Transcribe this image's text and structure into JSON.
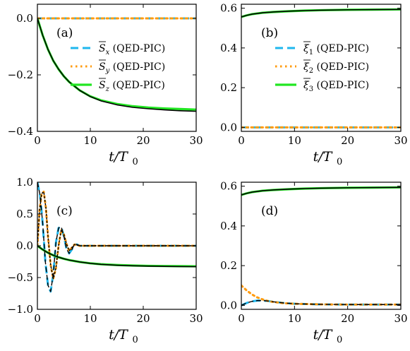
{
  "colors": {
    "x": "#1fb7ee",
    "y": "#ff9b0f",
    "z": "#22e622",
    "theory": "#000000"
  },
  "chart_data": [
    {
      "panel": "(a)",
      "type": "line",
      "xlabel": "t/T",
      "xlabel_sub": "0",
      "xlim": [
        0,
        30
      ],
      "ylim": [
        -0.4,
        0.05
      ],
      "xticks": [
        0,
        10,
        20,
        30
      ],
      "xtick_labels": [
        "0",
        "10",
        "20",
        "30"
      ],
      "yticks": [
        0,
        -0.2,
        -0.4
      ],
      "ytick_labels": [
        "0.0",
        "−0.2",
        "−0.4"
      ],
      "legend": [
        {
          "sym": "S",
          "sub": "x",
          "suffix": "(QED-PIC)",
          "style": "dashed",
          "color_key": "x"
        },
        {
          "sym": "S",
          "sub": "y",
          "suffix": "(QED-PIC)",
          "style": "dotted",
          "color_key": "y"
        },
        {
          "sym": "S",
          "sub": "z",
          "suffix": "(QED-PIC)",
          "style": "solid",
          "color_key": "z"
        }
      ],
      "series": [
        {
          "key": "x",
          "x": [
            0,
            5,
            10,
            15,
            20,
            25,
            30
          ],
          "y": [
            0,
            0,
            0,
            0,
            0,
            0,
            0
          ]
        },
        {
          "key": "y",
          "x": [
            0,
            5,
            10,
            15,
            20,
            25,
            30
          ],
          "y": [
            0,
            0,
            0,
            0,
            0,
            0,
            0
          ]
        },
        {
          "key": "z",
          "x": [
            0,
            1,
            2,
            3,
            4,
            5,
            6,
            8,
            10,
            12,
            15,
            18,
            21,
            24,
            27,
            30
          ],
          "y": [
            0,
            -0.06,
            -0.11,
            -0.15,
            -0.18,
            -0.205,
            -0.225,
            -0.255,
            -0.276,
            -0.29,
            -0.303,
            -0.311,
            -0.316,
            -0.319,
            -0.321,
            -0.323
          ]
        },
        {
          "key": "theory",
          "x": [
            0,
            1,
            2,
            3,
            4,
            5,
            6,
            8,
            10,
            12,
            15,
            18,
            21,
            24,
            27,
            30
          ],
          "y": [
            0,
            -0.06,
            -0.11,
            -0.15,
            -0.18,
            -0.205,
            -0.225,
            -0.255,
            -0.277,
            -0.292,
            -0.306,
            -0.315,
            -0.32,
            -0.324,
            -0.327,
            -0.329
          ]
        }
      ]
    },
    {
      "panel": "(b)",
      "type": "line",
      "xlabel": "t/T",
      "xlabel_sub": "0",
      "xlim": [
        0,
        30
      ],
      "ylim": [
        -0.02,
        0.62
      ],
      "xticks": [
        0,
        10,
        20,
        30
      ],
      "xtick_labels": [
        "0",
        "10",
        "20",
        "30"
      ],
      "yticks": [
        0.0,
        0.2,
        0.4,
        0.6
      ],
      "ytick_labels": [
        "0.0",
        "0.2",
        "0.4",
        "0.6"
      ],
      "legend": [
        {
          "sym": "ξ",
          "sub": "1",
          "suffix": "(QED-PIC)",
          "style": "dashed",
          "color_key": "x"
        },
        {
          "sym": "ξ",
          "sub": "2",
          "suffix": "(QED-PIC)",
          "style": "dotted",
          "color_key": "y"
        },
        {
          "sym": "ξ",
          "sub": "3",
          "suffix": "(QED-PIC)",
          "style": "solid",
          "color_key": "z"
        }
      ],
      "series": [
        {
          "key": "x",
          "x": [
            0,
            10,
            20,
            30
          ],
          "y": [
            0,
            0,
            0,
            0
          ]
        },
        {
          "key": "y",
          "x": [
            0,
            10,
            20,
            30
          ],
          "y": [
            0,
            0,
            0,
            0
          ]
        },
        {
          "key": "z",
          "x": [
            0,
            1,
            2,
            4,
            6,
            9,
            12,
            15,
            20,
            25,
            30
          ],
          "y": [
            0.556,
            0.564,
            0.57,
            0.577,
            0.581,
            0.585,
            0.588,
            0.59,
            0.592,
            0.593,
            0.594
          ]
        },
        {
          "key": "theory",
          "x": [
            0,
            1,
            2,
            4,
            6,
            9,
            12,
            15,
            20,
            25,
            30
          ],
          "y": [
            0.556,
            0.564,
            0.57,
            0.577,
            0.581,
            0.585,
            0.588,
            0.59,
            0.592,
            0.593,
            0.594
          ]
        }
      ]
    },
    {
      "panel": "(c)",
      "type": "line",
      "xlabel": "t/T",
      "xlabel_sub": "0",
      "xlim": [
        0,
        30
      ],
      "ylim": [
        -1.0,
        1.0
      ],
      "xticks": [
        0,
        10,
        20,
        30
      ],
      "xtick_labels": [
        "0",
        "10",
        "20",
        "30"
      ],
      "yticks": [
        1.0,
        0.5,
        0.0,
        -0.5,
        -1.0
      ],
      "ytick_labels": [
        "1.0",
        "0.5",
        "0.0",
        "−0.5",
        "−1.0"
      ],
      "legend": [],
      "series": [
        {
          "key": "x",
          "x": [
            0,
            0.5,
            1,
            1.5,
            2,
            2.5,
            3,
            3.5,
            4,
            4.5,
            5,
            5.5,
            6,
            6.5,
            7,
            7.5,
            8,
            10,
            15,
            20,
            25,
            30
          ],
          "y": [
            1.0,
            0.8,
            0.35,
            -0.25,
            -0.62,
            -0.72,
            -0.45,
            0.05,
            0.28,
            0.3,
            0.15,
            -0.05,
            -0.12,
            -0.06,
            0.02,
            0.02,
            0.0,
            0.0,
            0.0,
            0.0,
            0.0,
            0.0
          ]
        },
        {
          "key": "y",
          "x": [
            0,
            0.4,
            0.8,
            1.2,
            1.6,
            2,
            2.5,
            3,
            3.5,
            4,
            4.5,
            5,
            5.5,
            6,
            6.5,
            7,
            8,
            10,
            15,
            20,
            25,
            30
          ],
          "y": [
            0.0,
            0.55,
            0.82,
            0.85,
            0.6,
            0.15,
            -0.3,
            -0.52,
            -0.35,
            0.0,
            0.25,
            0.18,
            0.03,
            -0.08,
            -0.03,
            0.02,
            0.0,
            0.0,
            0.0,
            0.0,
            0.0,
            0.0
          ]
        },
        {
          "key": "z",
          "x": [
            0,
            1,
            2,
            3,
            4,
            5,
            6,
            8,
            10,
            12,
            15,
            18,
            21,
            24,
            27,
            30
          ],
          "y": [
            0,
            -0.06,
            -0.11,
            -0.15,
            -0.18,
            -0.205,
            -0.225,
            -0.255,
            -0.276,
            -0.29,
            -0.303,
            -0.311,
            -0.316,
            -0.319,
            -0.321,
            -0.323
          ]
        },
        {
          "key": "theory_dash",
          "x": [
            0,
            0.5,
            1,
            1.5,
            2,
            2.5,
            3,
            3.5,
            4,
            4.5,
            5,
            5.5,
            6,
            6.5,
            7,
            7.5,
            8,
            10,
            15,
            20,
            25,
            30
          ],
          "y": [
            1.0,
            0.8,
            0.35,
            -0.25,
            -0.62,
            -0.72,
            -0.45,
            0.05,
            0.28,
            0.3,
            0.15,
            -0.05,
            -0.12,
            -0.06,
            0.02,
            0.02,
            0.0,
            0.0,
            0.0,
            0.0,
            0.0,
            0.0
          ]
        },
        {
          "key": "theory_dot",
          "x": [
            0,
            0.4,
            0.8,
            1.2,
            1.6,
            2,
            2.5,
            3,
            3.5,
            4,
            4.5,
            5,
            5.5,
            6,
            6.5,
            7,
            8,
            10,
            15,
            20,
            25,
            30
          ],
          "y": [
            0.0,
            0.55,
            0.82,
            0.85,
            0.6,
            0.15,
            -0.3,
            -0.52,
            -0.35,
            0.0,
            0.25,
            0.18,
            0.03,
            -0.08,
            -0.03,
            0.02,
            0.0,
            0.0,
            0.0,
            0.0,
            0.0,
            0.0
          ]
        },
        {
          "key": "theory",
          "x": [
            0,
            1,
            2,
            3,
            4,
            5,
            6,
            8,
            10,
            12,
            15,
            18,
            21,
            24,
            27,
            30
          ],
          "y": [
            0,
            -0.06,
            -0.11,
            -0.15,
            -0.18,
            -0.205,
            -0.225,
            -0.255,
            -0.277,
            -0.292,
            -0.306,
            -0.315,
            -0.32,
            -0.324,
            -0.327,
            -0.329
          ]
        }
      ]
    },
    {
      "panel": "(d)",
      "type": "line",
      "xlabel": "t/T",
      "xlabel_sub": "0",
      "xlim": [
        0,
        30
      ],
      "ylim": [
        -0.02,
        0.62
      ],
      "xticks": [
        0,
        10,
        20,
        30
      ],
      "xtick_labels": [
        "0",
        "10",
        "20",
        "30"
      ],
      "yticks": [
        0.0,
        0.2,
        0.4,
        0.6
      ],
      "ytick_labels": [
        "0.0",
        "0.2",
        "0.4",
        "0.6"
      ],
      "legend": [],
      "series": [
        {
          "key": "x",
          "x": [
            0,
            1,
            2,
            3,
            4,
            5,
            6,
            8,
            10,
            15,
            20,
            25,
            30
          ],
          "y": [
            0.0,
            0.012,
            0.02,
            0.024,
            0.024,
            0.022,
            0.018,
            0.012,
            0.008,
            0.005,
            0.004,
            0.004,
            0.004
          ]
        },
        {
          "key": "y",
          "x": [
            0,
            1,
            2,
            3,
            4,
            5,
            6,
            8,
            10,
            15,
            20,
            25,
            30
          ],
          "y": [
            0.1,
            0.075,
            0.055,
            0.04,
            0.03,
            0.022,
            0.017,
            0.011,
            0.008,
            0.005,
            0.004,
            0.004,
            0.004
          ]
        },
        {
          "key": "z",
          "x": [
            0,
            1,
            2,
            4,
            6,
            9,
            12,
            15,
            20,
            25,
            30
          ],
          "y": [
            0.556,
            0.564,
            0.57,
            0.577,
            0.581,
            0.585,
            0.588,
            0.59,
            0.592,
            0.593,
            0.594
          ]
        },
        {
          "key": "theory_dash",
          "x": [
            0,
            1,
            2,
            3,
            4,
            5,
            6,
            8,
            10,
            15,
            20,
            25,
            30
          ],
          "y": [
            0.0,
            0.012,
            0.02,
            0.024,
            0.024,
            0.022,
            0.018,
            0.012,
            0.008,
            0.005,
            0.004,
            0.004,
            0.004
          ]
        },
        {
          "key": "theory",
          "x": [
            0,
            1,
            2,
            4,
            6,
            9,
            12,
            15,
            20,
            25,
            30
          ],
          "y": [
            0.556,
            0.564,
            0.57,
            0.577,
            0.581,
            0.585,
            0.588,
            0.59,
            0.592,
            0.593,
            0.594
          ]
        }
      ]
    }
  ]
}
